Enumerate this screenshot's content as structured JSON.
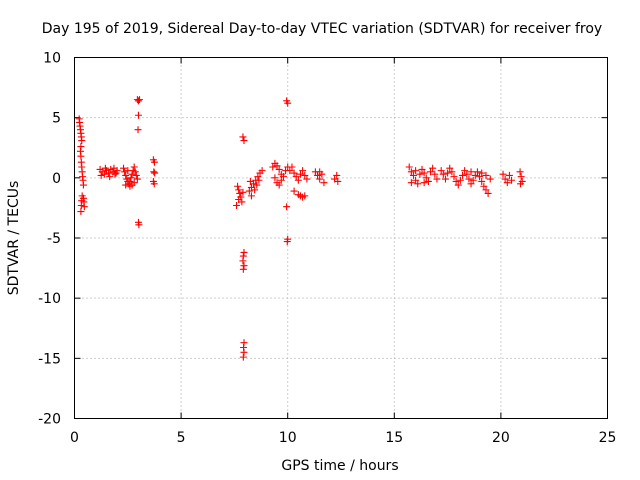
{
  "chart_data": {
    "type": "scatter",
    "title": "Day 195 of 2019, Sidereal Day-to-day VTEC variation (SDTVAR) for receiver froy",
    "xlabel": "GPS time / hours",
    "ylabel": "SDTVAR / TECUs",
    "xlim": [
      0,
      25
    ],
    "ylim": [
      -20,
      10
    ],
    "x_ticks": [
      "0",
      "5",
      "10",
      "15",
      "20",
      "25"
    ],
    "y_ticks": [
      "10",
      "5",
      "0",
      "-5",
      "-10",
      "-15",
      "-20"
    ],
    "grid": true,
    "marker": "+",
    "color": "#ff0000",
    "series": [
      {
        "name": "SDTVAR",
        "points": [
          [
            0.22,
            4.9
          ],
          [
            0.24,
            4.6
          ],
          [
            0.26,
            4.3
          ],
          [
            0.28,
            4.0
          ],
          [
            0.3,
            3.7
          ],
          [
            0.32,
            3.4
          ],
          [
            0.34,
            3.1
          ],
          [
            0.3,
            2.6
          ],
          [
            0.28,
            2.2
          ],
          [
            0.3,
            1.8
          ],
          [
            0.32,
            1.3
          ],
          [
            0.34,
            0.9
          ],
          [
            0.36,
            0.5
          ],
          [
            0.38,
            0.1
          ],
          [
            0.4,
            -0.2
          ],
          [
            0.42,
            -0.6
          ],
          [
            0.36,
            -1.5
          ],
          [
            0.34,
            -1.9
          ],
          [
            0.32,
            -2.3
          ],
          [
            0.3,
            -2.8
          ],
          [
            0.42,
            -1.7
          ],
          [
            0.44,
            -2.0
          ],
          [
            0.46,
            -2.4
          ],
          [
            1.2,
            0.7
          ],
          [
            1.3,
            0.5
          ],
          [
            1.4,
            0.3
          ],
          [
            1.5,
            0.6
          ],
          [
            1.6,
            0.4
          ],
          [
            1.7,
            0.7
          ],
          [
            1.8,
            0.5
          ],
          [
            1.9,
            0.3
          ],
          [
            2.0,
            0.6
          ],
          [
            1.25,
            0.2
          ],
          [
            1.45,
            0.8
          ],
          [
            1.65,
            0.1
          ],
          [
            1.85,
            0.8
          ],
          [
            1.95,
            0.4
          ],
          [
            2.3,
            0.8
          ],
          [
            2.35,
            0.5
          ],
          [
            2.4,
            0.2
          ],
          [
            2.45,
            -0.1
          ],
          [
            2.5,
            -0.3
          ],
          [
            2.55,
            -0.5
          ],
          [
            2.6,
            -0.3
          ],
          [
            2.65,
            0.0
          ],
          [
            2.7,
            0.3
          ],
          [
            2.75,
            0.6
          ],
          [
            2.8,
            0.9
          ],
          [
            2.85,
            0.5
          ],
          [
            2.9,
            0.2
          ],
          [
            2.95,
            -0.1
          ],
          [
            2.6,
            -0.7
          ],
          [
            2.7,
            -0.6
          ],
          [
            2.8,
            -0.4
          ],
          [
            2.5,
            0.6
          ],
          [
            2.4,
            -0.6
          ],
          [
            2.95,
            6.5
          ],
          [
            3.0,
            6.4
          ],
          [
            3.05,
            6.5
          ],
          [
            3.0,
            5.2
          ],
          [
            2.98,
            4.0
          ],
          [
            3.0,
            -3.7
          ],
          [
            3.02,
            -3.9
          ],
          [
            3.7,
            1.5
          ],
          [
            3.75,
            1.3
          ],
          [
            3.72,
            0.5
          ],
          [
            3.76,
            0.4
          ],
          [
            3.7,
            -0.3
          ],
          [
            3.74,
            -0.5
          ],
          [
            7.65,
            -0.7
          ],
          [
            7.7,
            -1.0
          ],
          [
            7.75,
            -1.3
          ],
          [
            7.8,
            -1.6
          ],
          [
            7.85,
            -2.0
          ],
          [
            7.6,
            -2.3
          ],
          [
            7.7,
            -1.8
          ],
          [
            7.9,
            -1.2
          ],
          [
            7.9,
            3.4
          ],
          [
            7.95,
            3.1
          ],
          [
            7.95,
            -6.2
          ],
          [
            7.92,
            -6.5
          ],
          [
            7.9,
            -6.9
          ],
          [
            7.95,
            -7.3
          ],
          [
            7.92,
            -7.6
          ],
          [
            7.95,
            -13.7
          ],
          [
            7.93,
            -14.1
          ],
          [
            7.95,
            -14.5
          ],
          [
            7.92,
            -14.9
          ],
          [
            8.2,
            -1.1
          ],
          [
            8.3,
            -0.8
          ],
          [
            8.4,
            -0.5
          ],
          [
            8.5,
            -0.2
          ],
          [
            8.6,
            0.1
          ],
          [
            8.7,
            0.4
          ],
          [
            8.8,
            0.6
          ],
          [
            8.3,
            -1.5
          ],
          [
            8.45,
            -1.0
          ],
          [
            8.55,
            -0.6
          ],
          [
            8.65,
            -0.2
          ],
          [
            8.25,
            -0.3
          ],
          [
            9.3,
            0.9
          ],
          [
            9.4,
            1.2
          ],
          [
            9.5,
            1.0
          ],
          [
            9.6,
            0.7
          ],
          [
            9.7,
            0.3
          ],
          [
            9.8,
            0.1
          ],
          [
            9.5,
            -0.4
          ],
          [
            9.6,
            -0.6
          ],
          [
            9.4,
            0.0
          ],
          [
            9.7,
            -0.2
          ],
          [
            9.9,
            0.6
          ],
          [
            10.0,
            0.9
          ],
          [
            10.1,
            0.6
          ],
          [
            10.2,
            0.9
          ],
          [
            10.3,
            0.4
          ],
          [
            10.4,
            0.1
          ],
          [
            10.5,
            -0.2
          ],
          [
            10.6,
            0.3
          ],
          [
            10.7,
            0.6
          ],
          [
            10.8,
            0.2
          ],
          [
            10.9,
            -0.1
          ],
          [
            10.5,
            -1.4
          ],
          [
            10.6,
            -1.5
          ],
          [
            10.7,
            -1.6
          ],
          [
            10.8,
            -1.5
          ],
          [
            10.3,
            -1.1
          ],
          [
            9.95,
            6.4
          ],
          [
            10.0,
            6.2
          ],
          [
            9.95,
            -2.4
          ],
          [
            10.0,
            -5.1
          ],
          [
            9.98,
            -5.3
          ],
          [
            11.3,
            0.5
          ],
          [
            11.4,
            0.2
          ],
          [
            11.5,
            -0.1
          ],
          [
            11.6,
            0.3
          ],
          [
            11.7,
            -0.4
          ],
          [
            11.5,
            0.5
          ],
          [
            12.2,
            -0.1
          ],
          [
            12.3,
            0.2
          ],
          [
            12.35,
            -0.3
          ],
          [
            15.7,
            0.9
          ],
          [
            15.8,
            0.5
          ],
          [
            15.9,
            0.2
          ],
          [
            16.0,
            -0.2
          ],
          [
            16.1,
            -0.5
          ],
          [
            16.2,
            0.3
          ],
          [
            16.3,
            0.7
          ],
          [
            16.4,
            0.4
          ],
          [
            16.5,
            0.0
          ],
          [
            16.6,
            -0.3
          ],
          [
            16.7,
            0.5
          ],
          [
            16.8,
            0.8
          ],
          [
            16.9,
            0.3
          ],
          [
            17.0,
            -0.1
          ],
          [
            15.8,
            -0.4
          ],
          [
            16.0,
            0.6
          ],
          [
            16.4,
            -0.4
          ],
          [
            17.2,
            0.6
          ],
          [
            17.3,
            0.3
          ],
          [
            17.4,
            -0.1
          ],
          [
            17.5,
            0.4
          ],
          [
            17.6,
            0.8
          ],
          [
            17.7,
            0.5
          ],
          [
            17.8,
            0.1
          ],
          [
            17.9,
            -0.3
          ],
          [
            18.0,
            -0.6
          ],
          [
            18.1,
            -0.2
          ],
          [
            18.2,
            0.2
          ],
          [
            18.3,
            0.6
          ],
          [
            18.4,
            0.3
          ],
          [
            18.5,
            -0.1
          ],
          [
            18.6,
            -0.5
          ],
          [
            18.7,
            -0.2
          ],
          [
            18.8,
            0.2
          ],
          [
            18.9,
            0.5
          ],
          [
            19.0,
            0.1
          ],
          [
            19.1,
            -0.3
          ],
          [
            19.2,
            -0.7
          ],
          [
            19.3,
            -1.0
          ],
          [
            19.4,
            -1.3
          ],
          [
            19.1,
            0.4
          ],
          [
            19.3,
            0.2
          ],
          [
            19.5,
            -0.1
          ],
          [
            18.6,
            0.5
          ],
          [
            20.1,
            0.3
          ],
          [
            20.2,
            -0.1
          ],
          [
            20.3,
            -0.4
          ],
          [
            20.4,
            0.2
          ],
          [
            20.5,
            -0.2
          ],
          [
            20.9,
            0.5
          ],
          [
            20.95,
            0.1
          ],
          [
            21.0,
            -0.3
          ],
          [
            20.92,
            -0.5
          ]
        ]
      }
    ]
  }
}
